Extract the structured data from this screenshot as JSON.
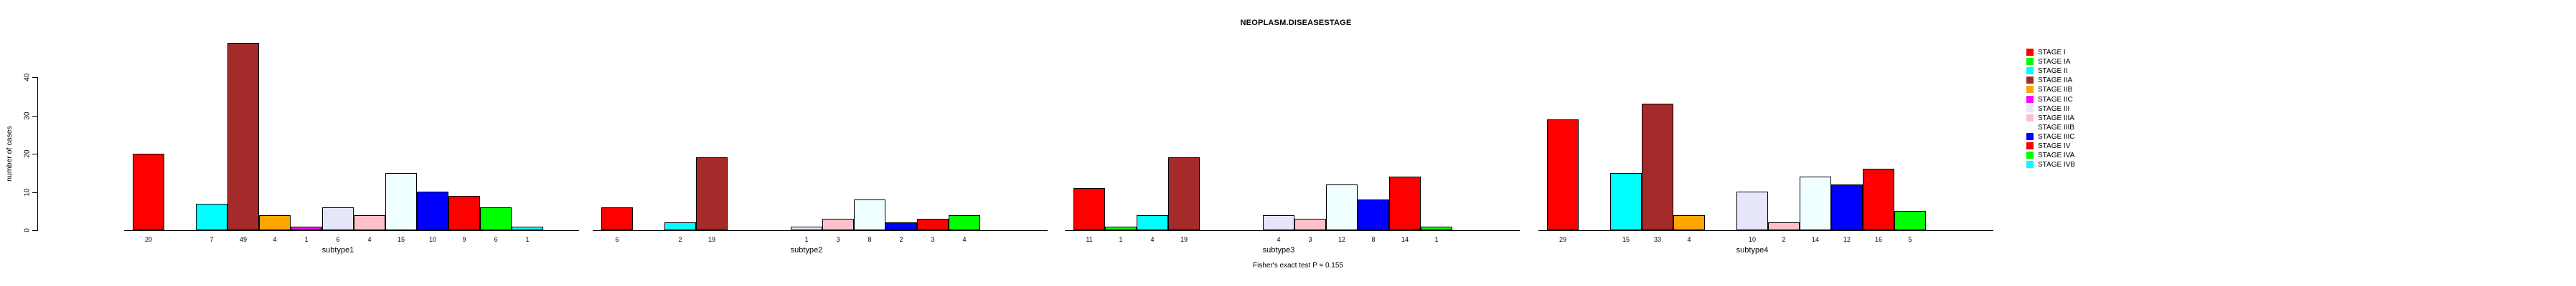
{
  "title": "NEOPLASM.DISEASESTAGE",
  "footer": "Fisher's exact test P = 0.155",
  "y_axis": {
    "label": "number of cases",
    "ticks": [
      "0",
      "10",
      "20",
      "30",
      "40"
    ]
  },
  "legend": {
    "position": "right",
    "entries": [
      {
        "label": "STAGE I",
        "color": "#FF0000"
      },
      {
        "label": "STAGE IA",
        "color": "#00FF00"
      },
      {
        "label": "STAGE II",
        "color": "#00FFFF"
      },
      {
        "label": "STAGE IIA",
        "color": "#A52A2A"
      },
      {
        "label": "STAGE IIB",
        "color": "#FFA500"
      },
      {
        "label": "STAGE IIC",
        "color": "#FF00FF"
      },
      {
        "label": "STAGE III",
        "color": "#E6E6FA"
      },
      {
        "label": "STAGE IIIA",
        "color": "#FFC0CB"
      },
      {
        "label": "STAGE IIIB",
        "color": "#F0FFFF"
      },
      {
        "label": "STAGE IIIC",
        "color": "#0000FF"
      },
      {
        "label": "STAGE IV",
        "color": "#FF0000"
      },
      {
        "label": "STAGE IVA",
        "color": "#00FF00"
      },
      {
        "label": "STAGE IVB",
        "color": "#00FFFF"
      }
    ]
  },
  "chart_data": {
    "type": "bar",
    "title": "NEOPLASM.DISEASESTAGE",
    "xlabel": "",
    "ylabel": "number of cases",
    "ylim": [
      0,
      49
    ],
    "yticks": [
      0,
      10,
      20,
      30,
      40
    ],
    "grid": false,
    "legend_position": "right",
    "bar_value_labels_shown": true,
    "annotation": "Fisher's exact test P = 0.155",
    "categories": [
      "subtype1",
      "subtype2",
      "subtype3",
      "subtype4"
    ],
    "series": [
      {
        "name": "STAGE I",
        "color": "#FF0000",
        "values": [
          20,
          6,
          11,
          29
        ]
      },
      {
        "name": "STAGE IA",
        "color": "#00FF00",
        "values": [
          0,
          0,
          1,
          0
        ]
      },
      {
        "name": "STAGE II",
        "color": "#00FFFF",
        "values": [
          7,
          2,
          4,
          15
        ]
      },
      {
        "name": "STAGE IIA",
        "color": "#A52A2A",
        "values": [
          49,
          19,
          19,
          33
        ]
      },
      {
        "name": "STAGE IIB",
        "color": "#FFA500",
        "values": [
          4,
          0,
          0,
          4
        ]
      },
      {
        "name": "STAGE IIC",
        "color": "#FF00FF",
        "values": [
          1,
          0,
          0,
          0
        ]
      },
      {
        "name": "STAGE III",
        "color": "#E6E6FA",
        "values": [
          6,
          1,
          4,
          10
        ]
      },
      {
        "name": "STAGE IIIA",
        "color": "#FFC0CB",
        "values": [
          4,
          3,
          3,
          2
        ]
      },
      {
        "name": "STAGE IIIB",
        "color": "#F0FFFF",
        "values": [
          15,
          8,
          12,
          14
        ]
      },
      {
        "name": "STAGE IIIC",
        "color": "#0000FF",
        "values": [
          10,
          2,
          8,
          12
        ]
      },
      {
        "name": "STAGE IV",
        "color": "#FF0000",
        "values": [
          9,
          3,
          14,
          16
        ]
      },
      {
        "name": "STAGE IVA",
        "color": "#00FF00",
        "values": [
          6,
          4,
          1,
          5
        ]
      },
      {
        "name": "STAGE IVB",
        "color": "#00FFFF",
        "values": [
          1,
          0,
          0,
          0
        ]
      }
    ]
  }
}
